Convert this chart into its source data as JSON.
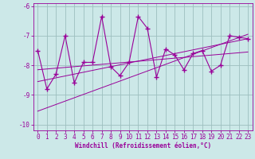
{
  "xlabel": "Windchill (Refroidissement éolien,°C)",
  "background_color": "#cce8e8",
  "grid_color": "#aacccc",
  "line_color": "#990099",
  "x_data": [
    0,
    1,
    2,
    3,
    4,
    5,
    6,
    7,
    8,
    9,
    10,
    11,
    12,
    13,
    14,
    15,
    16,
    17,
    18,
    19,
    20,
    21,
    22,
    23
  ],
  "y_data": [
    -7.5,
    -8.8,
    -8.3,
    -7.0,
    -8.6,
    -7.9,
    -7.9,
    -6.35,
    -8.05,
    -8.35,
    -7.9,
    -6.35,
    -6.75,
    -8.4,
    -7.45,
    -7.65,
    -8.15,
    -7.6,
    -7.5,
    -8.2,
    -8.0,
    -7.0,
    -7.05,
    -7.1
  ],
  "trend1_x": [
    0,
    23
  ],
  "trend1_y": [
    -8.15,
    -7.55
  ],
  "trend2_x": [
    0,
    23
  ],
  "trend2_y": [
    -8.55,
    -7.1
  ],
  "trend3_x": [
    0,
    23
  ],
  "trend3_y": [
    -9.55,
    -6.95
  ],
  "ylim": [
    -10.2,
    -5.9
  ],
  "xlim": [
    -0.5,
    23.5
  ],
  "yticks": [
    -10,
    -9,
    -8,
    -7,
    -6
  ],
  "xticks": [
    0,
    1,
    2,
    3,
    4,
    5,
    6,
    7,
    8,
    9,
    10,
    11,
    12,
    13,
    14,
    15,
    16,
    17,
    18,
    19,
    20,
    21,
    22,
    23
  ],
  "tick_fontsize": 5.5,
  "xlabel_fontsize": 5.5
}
